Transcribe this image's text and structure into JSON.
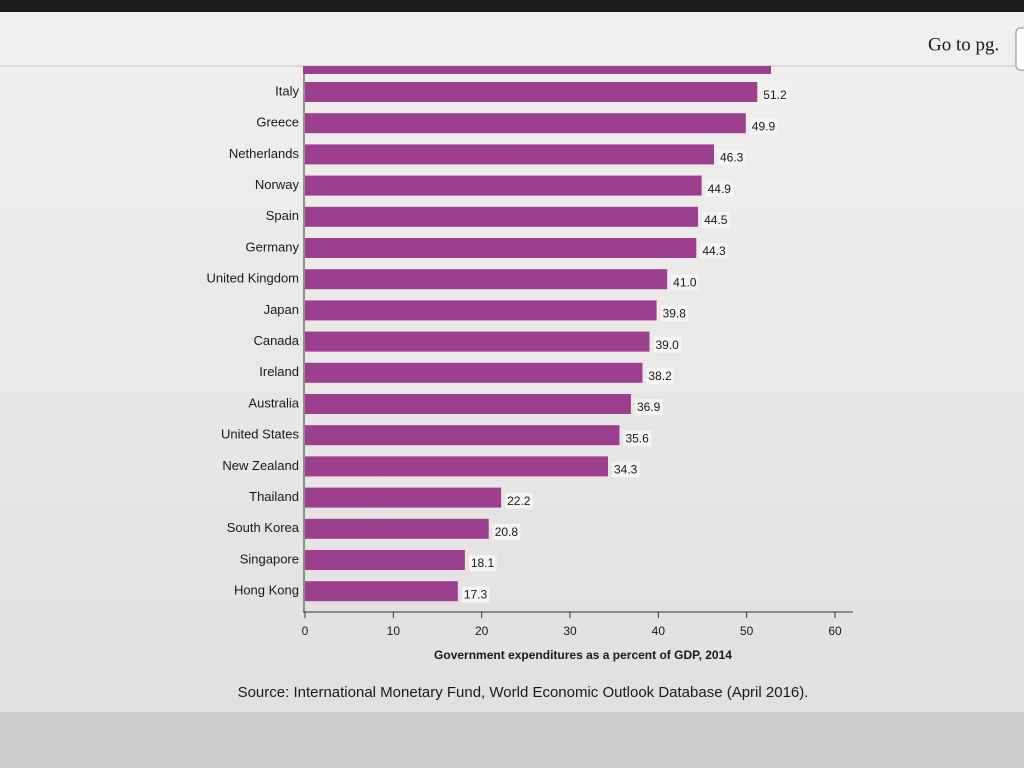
{
  "ui": {
    "goto_label": "Go to pg."
  },
  "chart_data": {
    "type": "bar",
    "orientation": "horizontal",
    "categories": [
      "Italy",
      "Greece",
      "Netherlands",
      "Norway",
      "Spain",
      "Germany",
      "United Kingdom",
      "Japan",
      "Canada",
      "Ireland",
      "Australia",
      "United States",
      "New Zealand",
      "Thailand",
      "South Korea",
      "Singapore",
      "Hong Kong"
    ],
    "values": [
      51.2,
      49.9,
      46.3,
      44.9,
      44.5,
      44.3,
      41.0,
      39.8,
      39.0,
      38.2,
      36.9,
      35.6,
      34.3,
      22.2,
      20.8,
      18.1,
      17.3
    ],
    "value_labels": [
      "51.2",
      "49.9",
      "46.3",
      "44.9",
      "44.5",
      "44.3",
      "41.0",
      "39.8",
      "39.0",
      "38.2",
      "36.9",
      "35.6",
      "34.3",
      "22.2",
      "20.8",
      "18.1",
      "17.3"
    ],
    "color": "#9c3f8e",
    "xlim": [
      0,
      60
    ],
    "xticks": [
      0,
      10,
      20,
      30,
      40,
      50,
      60
    ],
    "x_label": "Government expenditures as a percent of GDP, 2014",
    "source": "Source: International Monetary Fund, World Economic Outlook Database (April 2016)."
  }
}
